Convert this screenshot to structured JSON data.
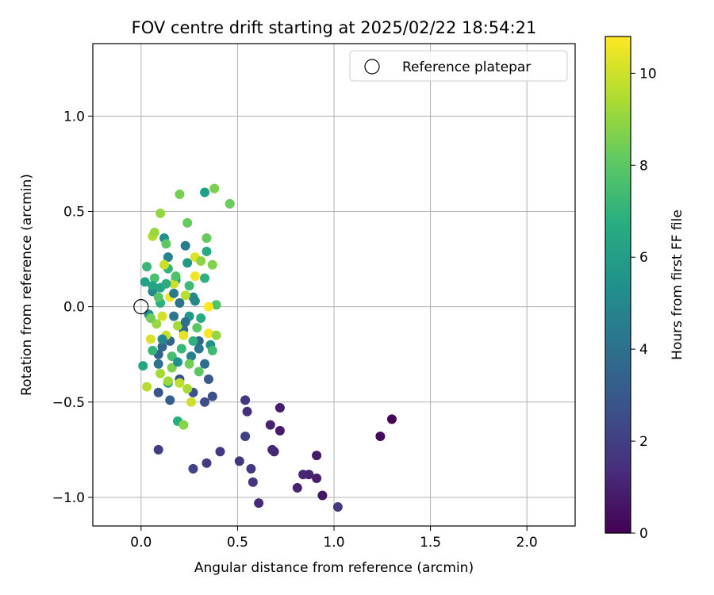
{
  "chart_data": {
    "type": "scatter",
    "title": "FOV centre drift starting at 2025/02/22 18:54:21",
    "xlabel": "Angular distance from reference (arcmin)",
    "ylabel": "Rotation from reference (arcmin)",
    "xlim": [
      -0.25,
      2.25
    ],
    "ylim": [
      -1.15,
      1.38
    ],
    "xticks": [
      0.0,
      0.5,
      1.0,
      1.5,
      2.0
    ],
    "yticks": [
      -1.0,
      -0.5,
      0.0,
      0.5,
      1.0
    ],
    "xtick_labels": [
      "0.0",
      "0.5",
      "1.0",
      "1.5",
      "2.0"
    ],
    "ytick_labels": [
      "−1.0",
      "−0.5",
      "0.0",
      "0.5",
      "1.0"
    ],
    "grid": true,
    "legend": {
      "position": "top-right",
      "label": "Reference platepar"
    },
    "reference_point": {
      "x": 0.0,
      "y": 0.0
    },
    "colorbar": {
      "label": "Hours from first FF file",
      "range": [
        0,
        10.8
      ],
      "ticks": [
        0,
        2,
        4,
        6,
        8,
        10
      ],
      "tick_labels": [
        "0",
        "2",
        "4",
        "6",
        "8",
        "10"
      ],
      "colormap": "viridis"
    },
    "points": [
      {
        "x": 1.3,
        "y": -0.59,
        "c": 0.1
      },
      {
        "x": 1.24,
        "y": -0.68,
        "c": 0.3
      },
      {
        "x": 1.02,
        "y": -1.05,
        "c": 1.8
      },
      {
        "x": 0.94,
        "y": -0.99,
        "c": 0.6
      },
      {
        "x": 0.91,
        "y": -0.9,
        "c": 0.8
      },
      {
        "x": 0.91,
        "y": -0.78,
        "c": 0.7
      },
      {
        "x": 0.87,
        "y": -0.88,
        "c": 1.0
      },
      {
        "x": 0.84,
        "y": -0.88,
        "c": 1.2
      },
      {
        "x": 0.81,
        "y": -0.95,
        "c": 1.0
      },
      {
        "x": 0.72,
        "y": -0.53,
        "c": 0.9
      },
      {
        "x": 0.72,
        "y": -0.65,
        "c": 0.8
      },
      {
        "x": 0.69,
        "y": -0.76,
        "c": 1.1
      },
      {
        "x": 0.68,
        "y": -0.75,
        "c": 1.2
      },
      {
        "x": 0.67,
        "y": -0.62,
        "c": 1.0
      },
      {
        "x": 0.61,
        "y": -1.03,
        "c": 1.3
      },
      {
        "x": 0.58,
        "y": -0.92,
        "c": 1.6
      },
      {
        "x": 0.57,
        "y": -0.85,
        "c": 1.7
      },
      {
        "x": 0.55,
        "y": -0.55,
        "c": 1.4
      },
      {
        "x": 0.54,
        "y": -0.49,
        "c": 1.7
      },
      {
        "x": 0.54,
        "y": -0.68,
        "c": 2.0
      },
      {
        "x": 0.51,
        "y": -0.81,
        "c": 1.6
      },
      {
        "x": 0.41,
        "y": -0.76,
        "c": 1.8
      },
      {
        "x": 0.34,
        "y": -0.82,
        "c": 1.9
      },
      {
        "x": 0.27,
        "y": -0.85,
        "c": 2.2
      },
      {
        "x": 0.09,
        "y": -0.75,
        "c": 2.0
      },
      {
        "x": 0.37,
        "y": -0.47,
        "c": 2.6
      },
      {
        "x": 0.35,
        "y": -0.38,
        "c": 3.0
      },
      {
        "x": 0.33,
        "y": -0.5,
        "c": 2.5
      },
      {
        "x": 0.27,
        "y": -0.45,
        "c": 2.7
      },
      {
        "x": 0.2,
        "y": -0.38,
        "c": 2.8
      },
      {
        "x": 0.15,
        "y": -0.49,
        "c": 3.2
      },
      {
        "x": 0.09,
        "y": -0.45,
        "c": 2.8
      },
      {
        "x": 0.09,
        "y": -0.25,
        "c": 3.3
      },
      {
        "x": 0.11,
        "y": -0.21,
        "c": 3.6
      },
      {
        "x": 0.15,
        "y": -0.18,
        "c": 3.4
      },
      {
        "x": 0.22,
        "y": -0.12,
        "c": 3.7
      },
      {
        "x": 0.3,
        "y": -0.18,
        "c": 3.5
      },
      {
        "x": 0.33,
        "y": -0.3,
        "c": 3.8
      },
      {
        "x": 0.2,
        "y": 0.02,
        "c": 4.1
      },
      {
        "x": 0.23,
        "y": 0.32,
        "c": 4.5
      },
      {
        "x": 0.14,
        "y": 0.26,
        "c": 4.8
      },
      {
        "x": 0.17,
        "y": -0.05,
        "c": 4.3
      },
      {
        "x": 0.26,
        "y": -0.26,
        "c": 4.6
      },
      {
        "x": 0.06,
        "y": 0.08,
        "c": 5.0
      },
      {
        "x": 0.12,
        "y": 0.36,
        "c": 5.3
      },
      {
        "x": 0.33,
        "y": 0.6,
        "c": 6.1
      },
      {
        "x": 0.27,
        "y": 0.05,
        "c": 5.1
      },
      {
        "x": 0.04,
        "y": -0.04,
        "c": 5.2
      },
      {
        "x": 0.36,
        "y": -0.2,
        "c": 5.5
      },
      {
        "x": 0.25,
        "y": -0.05,
        "c": 5.7
      },
      {
        "x": 0.14,
        "y": -0.4,
        "c": 6.0
      },
      {
        "x": 0.18,
        "y": 0.14,
        "c": 5.6
      },
      {
        "x": 0.1,
        "y": 0.1,
        "c": 6.3
      },
      {
        "x": 0.02,
        "y": 0.13,
        "c": 6.2
      },
      {
        "x": 0.01,
        "y": -0.31,
        "c": 6.4
      },
      {
        "x": 0.19,
        "y": -0.6,
        "c": 6.7
      },
      {
        "x": 0.34,
        "y": 0.29,
        "c": 6.5
      },
      {
        "x": 0.33,
        "y": 0.15,
        "c": 6.9
      },
      {
        "x": 0.03,
        "y": 0.21,
        "c": 7.2
      },
      {
        "x": 0.37,
        "y": -0.23,
        "c": 7.4
      },
      {
        "x": 0.06,
        "y": -0.23,
        "c": 7.1
      },
      {
        "x": 0.14,
        "y": 0.2,
        "c": 7.0
      },
      {
        "x": 0.25,
        "y": 0.11,
        "c": 7.3
      },
      {
        "x": 0.1,
        "y": 0.02,
        "c": 6.8
      },
      {
        "x": 0.07,
        "y": 0.15,
        "c": 7.6
      },
      {
        "x": 0.31,
        "y": -0.06,
        "c": 6.6
      },
      {
        "x": 0.16,
        "y": -0.26,
        "c": 7.5
      },
      {
        "x": 0.39,
        "y": 0.01,
        "c": 7.8
      },
      {
        "x": 0.46,
        "y": 0.54,
        "c": 8.3
      },
      {
        "x": 0.2,
        "y": 0.59,
        "c": 8.5
      },
      {
        "x": 0.38,
        "y": 0.62,
        "c": 8.6
      },
      {
        "x": 0.24,
        "y": 0.44,
        "c": 8.2
      },
      {
        "x": 0.29,
        "y": -0.11,
        "c": 8.0
      },
      {
        "x": 0.25,
        "y": -0.3,
        "c": 8.4
      },
      {
        "x": 0.13,
        "y": 0.33,
        "c": 8.1
      },
      {
        "x": 0.1,
        "y": 0.49,
        "c": 9.0
      },
      {
        "x": 0.06,
        "y": 0.37,
        "c": 9.5
      },
      {
        "x": 0.07,
        "y": 0.39,
        "c": 9.1
      },
      {
        "x": 0.22,
        "y": -0.62,
        "c": 8.8
      },
      {
        "x": 0.03,
        "y": -0.42,
        "c": 9.6
      },
      {
        "x": 0.24,
        "y": -0.43,
        "c": 9.4
      },
      {
        "x": 0.26,
        "y": -0.5,
        "c": 10.0
      },
      {
        "x": 0.14,
        "y": -0.39,
        "c": 9.2
      },
      {
        "x": 0.1,
        "y": -0.35,
        "c": 9.3
      },
      {
        "x": 0.2,
        "y": -0.4,
        "c": 9.7
      },
      {
        "x": 0.13,
        "y": -0.15,
        "c": 9.8
      },
      {
        "x": 0.05,
        "y": -0.17,
        "c": 10.2
      },
      {
        "x": 0.17,
        "y": 0.12,
        "c": 10.0
      },
      {
        "x": 0.22,
        "y": -0.15,
        "c": 10.4
      },
      {
        "x": 0.15,
        "y": 0.05,
        "c": 10.5
      },
      {
        "x": 0.28,
        "y": 0.16,
        "c": 10.6
      },
      {
        "x": 0.28,
        "y": 0.26,
        "c": 10.3
      },
      {
        "x": 0.35,
        "y": -0.14,
        "c": 10.7
      },
      {
        "x": 0.35,
        "y": 0.0,
        "c": 10.8
      },
      {
        "x": 0.11,
        "y": -0.05,
        "c": 10.1
      },
      {
        "x": 0.12,
        "y": 0.22,
        "c": 9.9
      },
      {
        "x": 0.39,
        "y": -0.15,
        "c": 9.0
      },
      {
        "x": 0.37,
        "y": 0.22,
        "c": 8.7
      },
      {
        "x": 0.34,
        "y": 0.36,
        "c": 8.2
      },
      {
        "x": 0.31,
        "y": 0.24,
        "c": 8.9
      },
      {
        "x": 0.19,
        "y": -0.1,
        "c": 9.3
      },
      {
        "x": 0.16,
        "y": -0.32,
        "c": 8.6
      },
      {
        "x": 0.08,
        "y": -0.09,
        "c": 9.1
      },
      {
        "x": 0.05,
        "y": -0.06,
        "c": 8.4
      },
      {
        "x": 0.23,
        "y": 0.06,
        "c": 9.6
      },
      {
        "x": 0.3,
        "y": -0.34,
        "c": 8.0
      },
      {
        "x": 0.09,
        "y": 0.05,
        "c": 7.9
      },
      {
        "x": 0.18,
        "y": 0.16,
        "c": 7.7
      },
      {
        "x": 0.21,
        "y": -0.22,
        "c": 7.2
      },
      {
        "x": 0.27,
        "y": -0.18,
        "c": 6.9
      },
      {
        "x": 0.13,
        "y": 0.12,
        "c": 6.7
      },
      {
        "x": 0.06,
        "y": 0.11,
        "c": 6.2
      },
      {
        "x": 0.24,
        "y": 0.23,
        "c": 5.8
      },
      {
        "x": 0.19,
        "y": -0.29,
        "c": 5.5
      },
      {
        "x": 0.11,
        "y": -0.17,
        "c": 5.0
      },
      {
        "x": 0.28,
        "y": 0.03,
        "c": 4.9
      },
      {
        "x": 0.17,
        "y": 0.07,
        "c": 4.4
      },
      {
        "x": 0.09,
        "y": -0.3,
        "c": 4.0
      },
      {
        "x": 0.23,
        "y": -0.08,
        "c": 3.9
      },
      {
        "x": 0.3,
        "y": -0.22,
        "c": 4.2
      }
    ]
  }
}
